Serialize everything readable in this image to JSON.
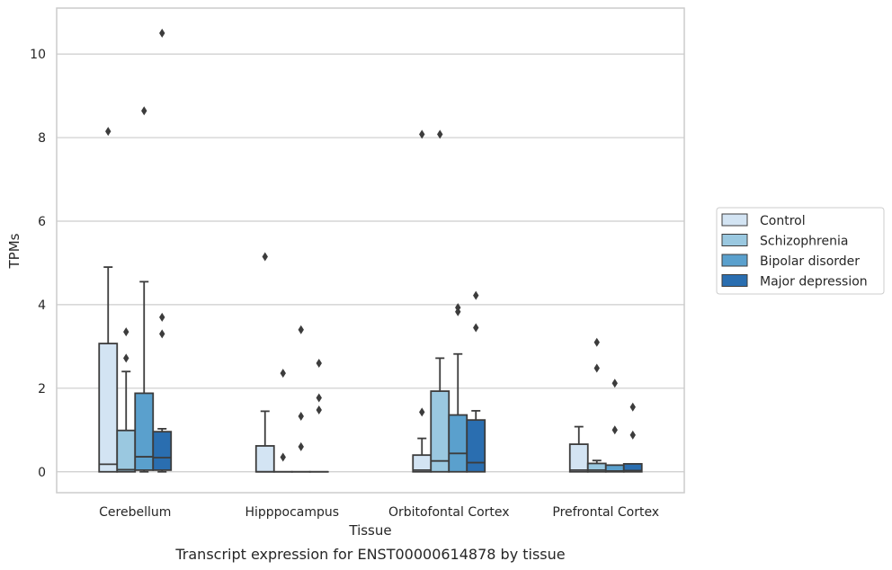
{
  "caption": "Transcript expression for ENST00000614878 by tissue",
  "chart_data": {
    "type": "box",
    "xlabel": "Tissue",
    "ylabel": "TPMs",
    "ylim": [
      -0.5,
      11.1
    ],
    "yticks": [
      0,
      2,
      4,
      6,
      8,
      10
    ],
    "grid": "horizontal",
    "legend_position": "right",
    "categories": [
      "Cerebellum",
      "Hipppocampus",
      "Orbitofontal Cortex",
      "Prefrontal Cortex"
    ],
    "series": [
      {
        "name": "Control",
        "color": "#d3e4f3",
        "boxes": [
          {
            "q1": 0,
            "median": 0.18,
            "q3": 3.07,
            "whisker_low": 0,
            "whisker_high": 4.9,
            "outliers": [
              8.15
            ]
          },
          {
            "q1": 0,
            "median": 0,
            "q3": 0.62,
            "whisker_low": 0,
            "whisker_high": 1.45,
            "outliers": [
              5.15
            ]
          },
          {
            "q1": 0,
            "median": 0.04,
            "q3": 0.4,
            "whisker_low": 0,
            "whisker_high": 0.8,
            "outliers": [
              1.43,
              8.08
            ]
          },
          {
            "q1": 0,
            "median": 0.04,
            "q3": 0.66,
            "whisker_low": 0,
            "whisker_high": 1.08,
            "outliers": []
          }
        ]
      },
      {
        "name": "Schizophrenia",
        "color": "#9ac8e0",
        "boxes": [
          {
            "q1": 0,
            "median": 0.05,
            "q3": 0.99,
            "whisker_low": 0,
            "whisker_high": 2.4,
            "outliers": [
              2.72,
              3.35
            ]
          },
          {
            "q1": 0,
            "median": 0,
            "q3": 0,
            "whisker_low": 0,
            "whisker_high": 0,
            "outliers": [
              0.35,
              2.36
            ]
          },
          {
            "q1": 0,
            "median": 0.26,
            "q3": 1.93,
            "whisker_low": 0,
            "whisker_high": 2.72,
            "outliers": [
              8.08
            ]
          },
          {
            "q1": 0,
            "median": 0.04,
            "q3": 0.2,
            "whisker_low": 0,
            "whisker_high": 0.27,
            "outliers": [
              2.48,
              3.1
            ]
          }
        ]
      },
      {
        "name": "Bipolar disorder",
        "color": "#5aa0cd",
        "boxes": [
          {
            "q1": 0.04,
            "median": 0.36,
            "q3": 1.88,
            "whisker_low": 0,
            "whisker_high": 4.55,
            "outliers": [
              8.64
            ]
          },
          {
            "q1": 0,
            "median": 0,
            "q3": 0,
            "whisker_low": 0,
            "whisker_high": 0,
            "outliers": [
              0.6,
              1.33,
              3.4
            ]
          },
          {
            "q1": 0,
            "median": 0.44,
            "q3": 1.36,
            "whisker_low": 0,
            "whisker_high": 2.82,
            "outliers": [
              3.83,
              3.93
            ]
          },
          {
            "q1": 0,
            "median": 0.02,
            "q3": 0.16,
            "whisker_low": 0,
            "whisker_high": 0.16,
            "outliers": [
              1.0,
              2.12
            ]
          }
        ]
      },
      {
        "name": "Major depression",
        "color": "#2a6eb0",
        "boxes": [
          {
            "q1": 0.04,
            "median": 0.34,
            "q3": 0.96,
            "whisker_low": 0,
            "whisker_high": 1.03,
            "outliers": [
              3.3,
              3.7,
              10.5
            ]
          },
          {
            "q1": 0,
            "median": 0,
            "q3": 0,
            "whisker_low": 0,
            "whisker_high": 0,
            "outliers": [
              1.48,
              1.77,
              2.6
            ]
          },
          {
            "q1": 0,
            "median": 0.22,
            "q3": 1.24,
            "whisker_low": 0,
            "whisker_high": 1.46,
            "outliers": [
              3.45,
              4.22
            ]
          },
          {
            "q1": 0,
            "median": 0.03,
            "q3": 0.19,
            "whisker_low": 0,
            "whisker_high": 0.19,
            "outliers": [
              0.88,
              1.55
            ]
          }
        ]
      }
    ]
  }
}
